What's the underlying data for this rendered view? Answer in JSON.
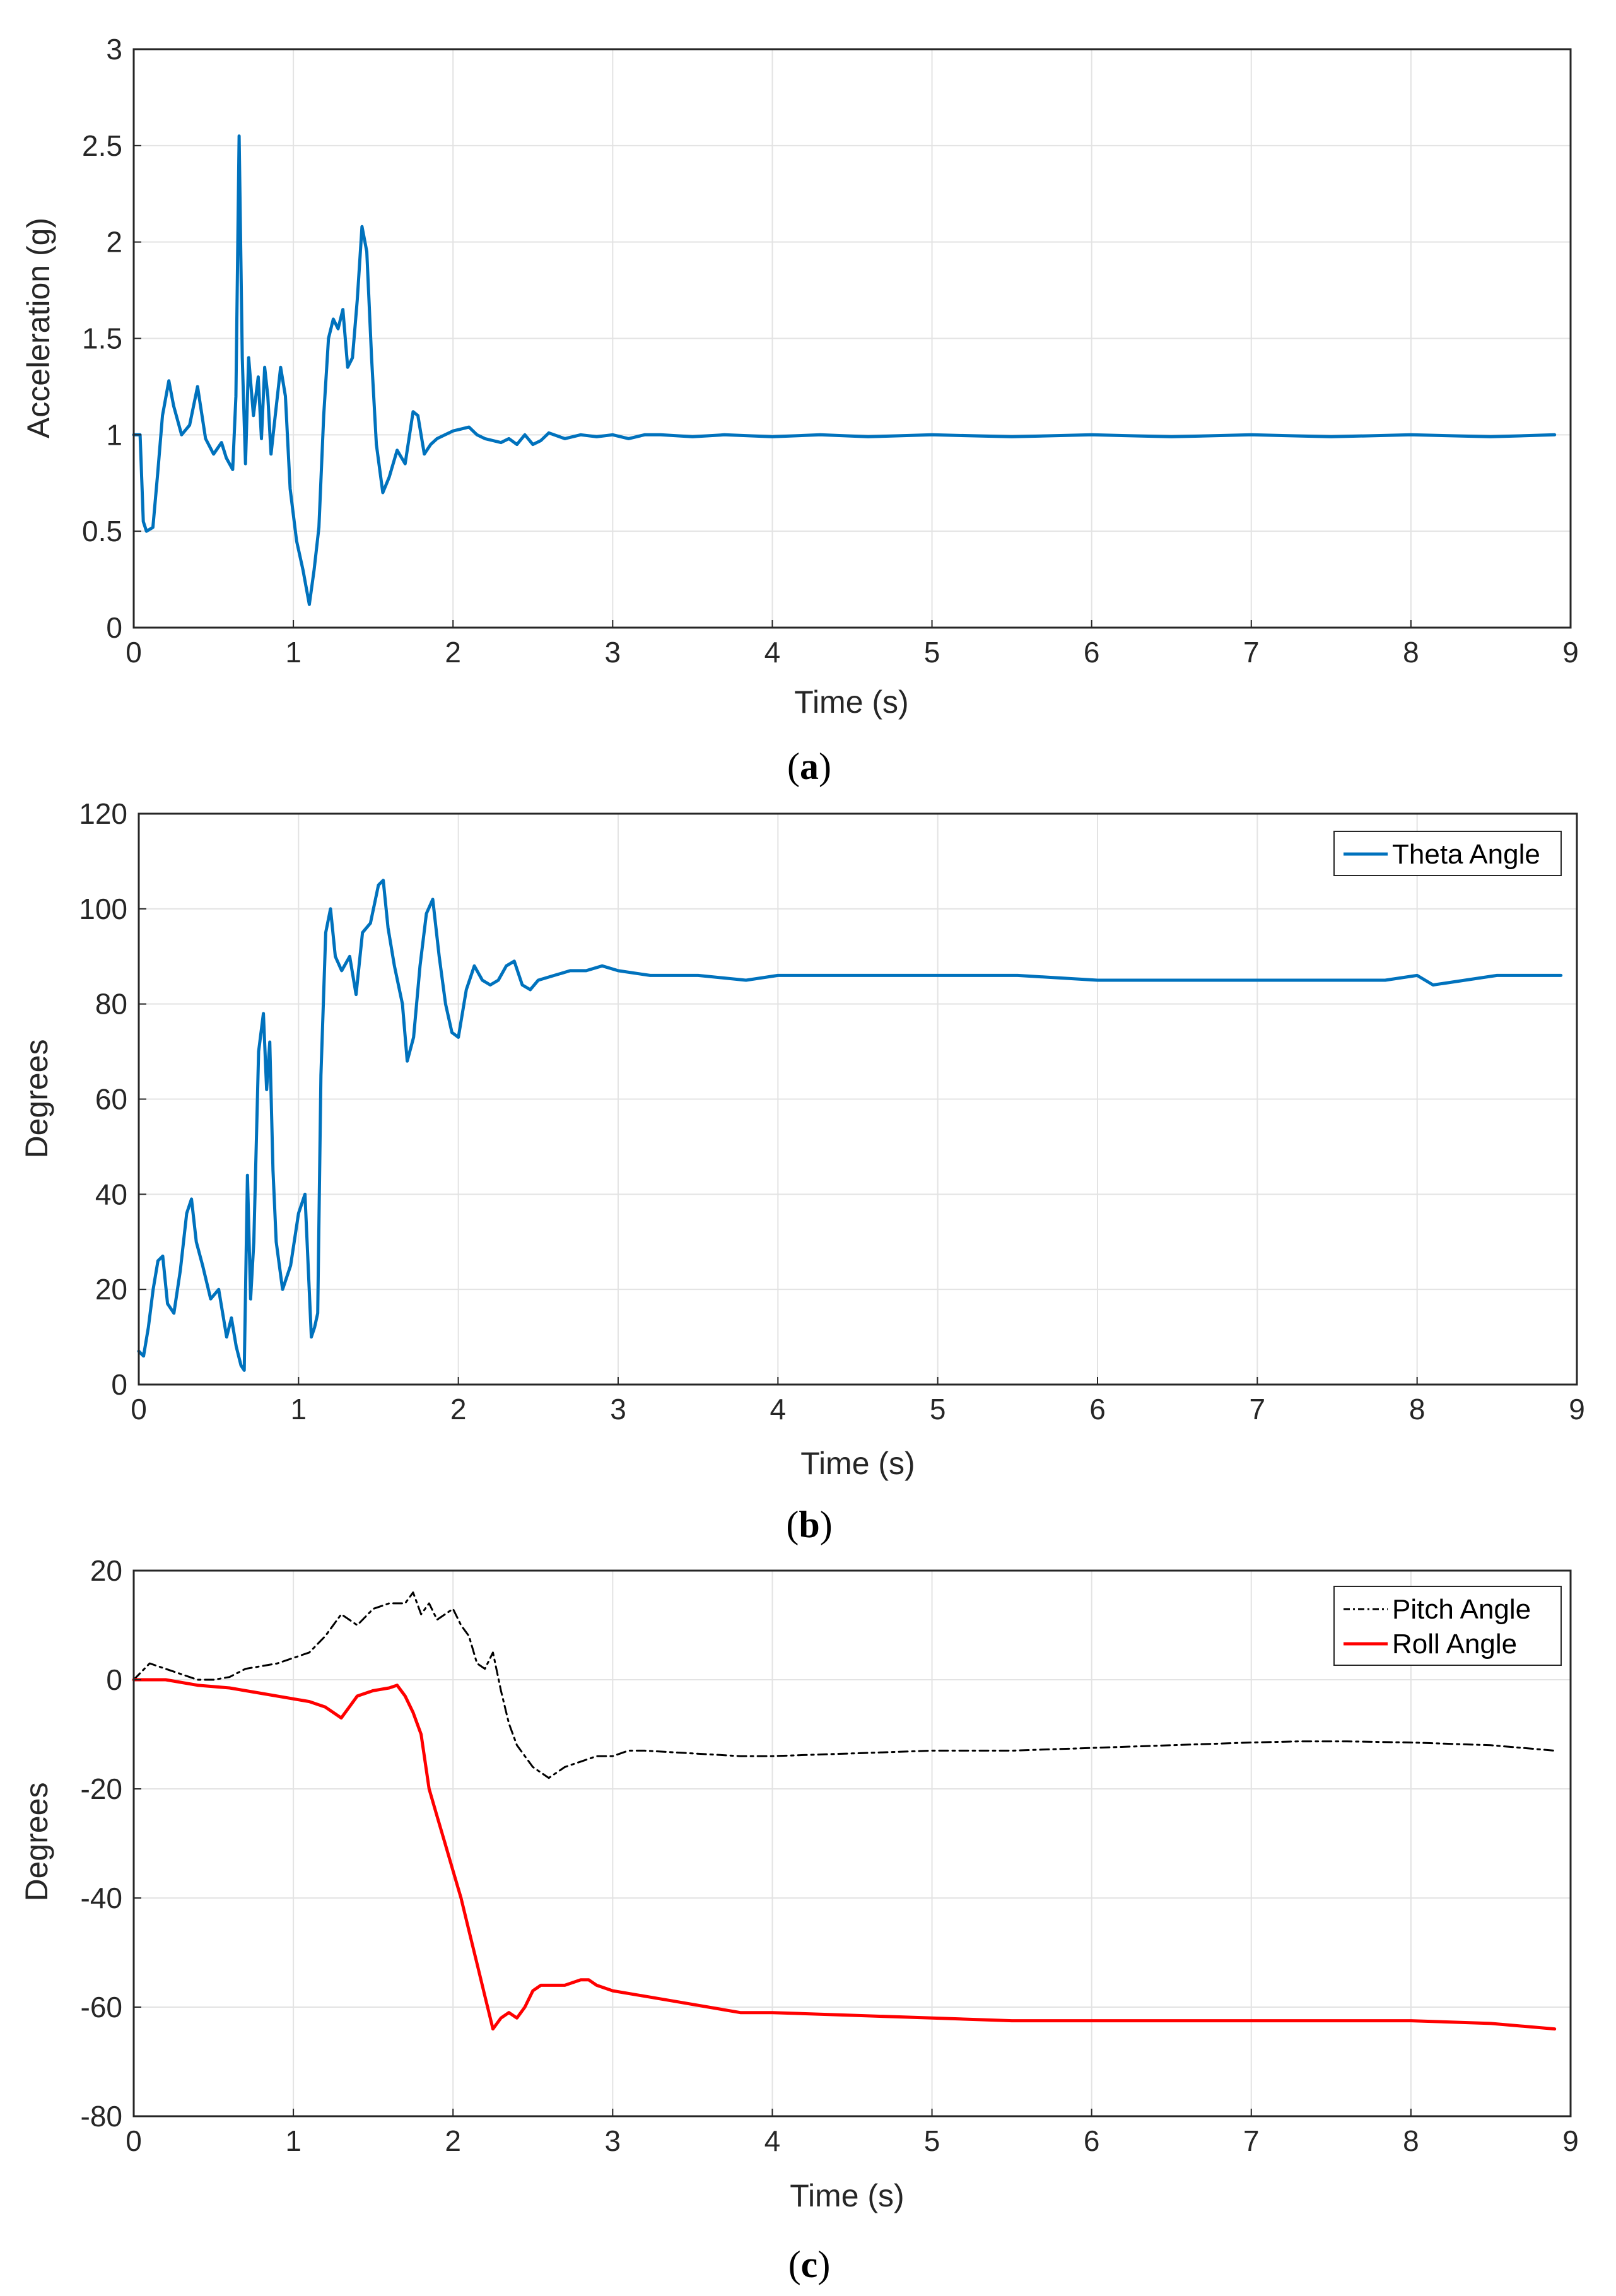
{
  "chart_data": [
    {
      "id": "a",
      "type": "line",
      "caption": "a",
      "title": "",
      "xlabel": "Time (s)",
      "ylabel": "Acceleration (g)",
      "xlim": [
        0,
        9
      ],
      "ylim": [
        0,
        3
      ],
      "xticks": [
        0,
        1,
        2,
        3,
        4,
        5,
        6,
        7,
        8,
        9
      ],
      "yticks": [
        0,
        0.5,
        1,
        1.5,
        2,
        2.5,
        3
      ],
      "ytick_labels": [
        "0",
        "0.5",
        "1",
        "1.5",
        "2",
        "2.5",
        "3"
      ],
      "grid": true,
      "legend": null,
      "series": [
        {
          "name": "Acceleration",
          "color": "#0072BD",
          "dash": "",
          "x": [
            0,
            0.04,
            0.06,
            0.08,
            0.12,
            0.15,
            0.18,
            0.22,
            0.25,
            0.3,
            0.35,
            0.4,
            0.45,
            0.5,
            0.55,
            0.58,
            0.62,
            0.64,
            0.66,
            0.68,
            0.7,
            0.72,
            0.75,
            0.78,
            0.8,
            0.82,
            0.84,
            0.86,
            0.88,
            0.92,
            0.95,
            0.98,
            1.02,
            1.06,
            1.1,
            1.13,
            1.16,
            1.19,
            1.22,
            1.25,
            1.28,
            1.31,
            1.34,
            1.37,
            1.4,
            1.43,
            1.46,
            1.49,
            1.52,
            1.56,
            1.6,
            1.65,
            1.7,
            1.75,
            1.78,
            1.82,
            1.86,
            1.9,
            1.95,
            2.0,
            2.05,
            2.1,
            2.15,
            2.2,
            2.25,
            2.3,
            2.35,
            2.4,
            2.45,
            2.5,
            2.55,
            2.6,
            2.7,
            2.8,
            2.9,
            3.0,
            3.1,
            3.2,
            3.3,
            3.5,
            3.7,
            4.0,
            4.3,
            4.6,
            5.0,
            5.5,
            6.0,
            6.5,
            7.0,
            7.5,
            8.0,
            8.5,
            8.9
          ],
          "y": [
            1.0,
            1.0,
            0.55,
            0.5,
            0.52,
            0.8,
            1.1,
            1.28,
            1.15,
            1.0,
            1.05,
            1.25,
            0.98,
            0.9,
            0.96,
            0.88,
            0.82,
            1.2,
            2.55,
            1.4,
            0.85,
            1.4,
            1.1,
            1.3,
            0.98,
            1.35,
            1.2,
            0.9,
            1.05,
            1.35,
            1.2,
            0.72,
            0.45,
            0.3,
            0.12,
            0.3,
            0.52,
            1.1,
            1.5,
            1.6,
            1.55,
            1.65,
            1.35,
            1.4,
            1.7,
            2.08,
            1.95,
            1.4,
            0.95,
            0.7,
            0.78,
            0.92,
            0.85,
            1.12,
            1.1,
            0.9,
            0.95,
            0.98,
            1.0,
            1.02,
            1.03,
            1.04,
            1.0,
            0.98,
            0.97,
            0.96,
            0.98,
            0.95,
            1.0,
            0.95,
            0.97,
            1.01,
            0.98,
            1.0,
            0.99,
            1.0,
            0.98,
            1.0,
            1.0,
            0.99,
            1.0,
            0.99,
            1.0,
            0.99,
            1.0,
            0.99,
            1.0,
            0.99,
            1.0,
            0.99,
            1.0,
            0.99,
            1.0
          ]
        }
      ]
    },
    {
      "id": "b",
      "type": "line",
      "caption": "b",
      "title": "",
      "xlabel": "Time (s)",
      "ylabel": "Degrees",
      "xlim": [
        0,
        9
      ],
      "ylim": [
        0,
        120
      ],
      "xticks": [
        0,
        1,
        2,
        3,
        4,
        5,
        6,
        7,
        8,
        9
      ],
      "yticks": [
        0,
        20,
        40,
        60,
        80,
        100,
        120
      ],
      "ytick_labels": [
        "0",
        "20",
        "40",
        "60",
        "80",
        "100",
        "120"
      ],
      "grid": true,
      "legend": {
        "position": "top-right",
        "entries": [
          "Theta Angle"
        ]
      },
      "series": [
        {
          "name": "Theta Angle",
          "color": "#0072BD",
          "dash": "",
          "x": [
            0,
            0.03,
            0.06,
            0.09,
            0.12,
            0.15,
            0.18,
            0.22,
            0.26,
            0.3,
            0.33,
            0.36,
            0.4,
            0.45,
            0.5,
            0.55,
            0.58,
            0.61,
            0.64,
            0.66,
            0.68,
            0.7,
            0.72,
            0.75,
            0.78,
            0.8,
            0.82,
            0.84,
            0.86,
            0.9,
            0.95,
            1.0,
            1.04,
            1.08,
            1.1,
            1.12,
            1.14,
            1.17,
            1.2,
            1.23,
            1.27,
            1.32,
            1.36,
            1.4,
            1.45,
            1.5,
            1.53,
            1.56,
            1.6,
            1.65,
            1.68,
            1.72,
            1.76,
            1.8,
            1.84,
            1.88,
            1.92,
            1.96,
            2.0,
            2.05,
            2.1,
            2.15,
            2.2,
            2.25,
            2.3,
            2.35,
            2.4,
            2.45,
            2.5,
            2.6,
            2.7,
            2.8,
            2.9,
            3.0,
            3.2,
            3.5,
            3.8,
            4.0,
            4.5,
            5.0,
            5.5,
            6.0,
            6.5,
            7.0,
            7.5,
            7.8,
            8.0,
            8.1,
            8.5,
            8.9
          ],
          "y": [
            7,
            6,
            12,
            20,
            26,
            27,
            17,
            15,
            24,
            36,
            39,
            30,
            25,
            18,
            20,
            10,
            14,
            8,
            4,
            3,
            44,
            18,
            30,
            70,
            78,
            62,
            72,
            45,
            30,
            20,
            25,
            36,
            40,
            10,
            12,
            15,
            65,
            95,
            100,
            90,
            87,
            90,
            82,
            95,
            97,
            105,
            106,
            96,
            88,
            80,
            68,
            73,
            88,
            99,
            102,
            90,
            80,
            74,
            73,
            83,
            88,
            85,
            84,
            85,
            88,
            89,
            84,
            83,
            85,
            86,
            87,
            87,
            88,
            87,
            86,
            86,
            85,
            86,
            86,
            86,
            86,
            85,
            85,
            85,
            85,
            85,
            86,
            84,
            86,
            86
          ]
        }
      ]
    },
    {
      "id": "c",
      "type": "line",
      "caption": "c",
      "title": "",
      "xlabel": "Time (s)",
      "ylabel": "Degrees",
      "xlim": [
        0,
        9
      ],
      "ylim": [
        -80,
        20
      ],
      "xticks": [
        0,
        1,
        2,
        3,
        4,
        5,
        6,
        7,
        8,
        9
      ],
      "yticks": [
        -80,
        -60,
        -40,
        -20,
        0,
        20
      ],
      "ytick_labels": [
        "-80",
        "-60",
        "-40",
        "-20",
        "0",
        "20"
      ],
      "grid": true,
      "legend": {
        "position": "top-right",
        "entries": [
          "Pitch Angle",
          "Roll Angle"
        ]
      },
      "series": [
        {
          "name": "Pitch Angle",
          "color": "#000000",
          "dash": "14,7,4,7",
          "x": [
            0,
            0.1,
            0.2,
            0.3,
            0.4,
            0.5,
            0.6,
            0.7,
            0.8,
            0.9,
            1.0,
            1.1,
            1.2,
            1.3,
            1.4,
            1.5,
            1.6,
            1.7,
            1.75,
            1.8,
            1.85,
            1.9,
            1.95,
            2.0,
            2.05,
            2.1,
            2.15,
            2.2,
            2.25,
            2.3,
            2.35,
            2.4,
            2.45,
            2.5,
            2.55,
            2.6,
            2.7,
            2.8,
            2.9,
            3.0,
            3.1,
            3.2,
            3.5,
            3.8,
            4.0,
            4.5,
            5.0,
            5.5,
            6.0,
            6.5,
            7.0,
            7.3,
            7.6,
            8.0,
            8.5,
            8.9
          ],
          "y": [
            0,
            3,
            2,
            1,
            0,
            0,
            0.5,
            2,
            2.5,
            3,
            4,
            5,
            8,
            12,
            10,
            13,
            14,
            14,
            16,
            12,
            14,
            11,
            12,
            13,
            10,
            8,
            3,
            2,
            5,
            -2,
            -8,
            -12,
            -14,
            -16,
            -17,
            -18,
            -16,
            -15,
            -14,
            -14,
            -13,
            -13,
            -13.5,
            -14,
            -14,
            -13.5,
            -13,
            -13,
            -12.5,
            -12,
            -11.5,
            -11.3,
            -11.3,
            -11.5,
            -12,
            -13
          ]
        },
        {
          "name": "Roll Angle",
          "color": "#FF0000",
          "dash": "",
          "x": [
            0,
            0.2,
            0.4,
            0.6,
            0.8,
            1.0,
            1.1,
            1.2,
            1.25,
            1.3,
            1.35,
            1.4,
            1.5,
            1.6,
            1.65,
            1.7,
            1.75,
            1.8,
            1.85,
            1.9,
            1.95,
            2.0,
            2.05,
            2.1,
            2.15,
            2.2,
            2.25,
            2.3,
            2.35,
            2.4,
            2.45,
            2.5,
            2.55,
            2.6,
            2.65,
            2.7,
            2.8,
            2.85,
            2.9,
            3.0,
            3.2,
            3.4,
            3.6,
            3.8,
            4.0,
            4.5,
            5.0,
            5.5,
            6.0,
            6.5,
            7.0,
            7.5,
            8.0,
            8.5,
            8.9
          ],
          "y": [
            0,
            0,
            -1,
            -1.5,
            -2.5,
            -3.5,
            -4,
            -5,
            -6,
            -7,
            -5,
            -3,
            -2,
            -1.5,
            -1,
            -3,
            -6,
            -10,
            -20,
            -25,
            -30,
            -35,
            -40,
            -46,
            -52,
            -58,
            -64,
            -62,
            -61,
            -62,
            -60,
            -57,
            -56,
            -56,
            -56,
            -56,
            -55,
            -55,
            -56,
            -57,
            -58,
            -59,
            -60,
            -61,
            -61,
            -61.5,
            -62,
            -62.5,
            -62.5,
            -62.5,
            -62.5,
            -62.5,
            -62.5,
            -63,
            -64
          ]
        }
      ]
    }
  ]
}
